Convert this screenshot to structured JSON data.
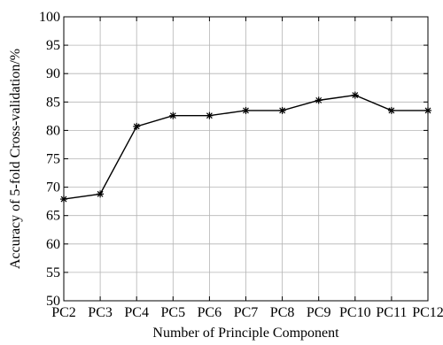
{
  "chart_data": {
    "type": "line",
    "title": "",
    "xlabel": "Number of Principle Component",
    "ylabel": "Accuracy of 5-fold Cross-validation/%",
    "categories": [
      "PC2",
      "PC3",
      "PC4",
      "PC5",
      "PC6",
      "PC7",
      "PC8",
      "PC9",
      "PC10",
      "PC11",
      "PC12"
    ],
    "series": [
      {
        "values": [
          67.9,
          68.8,
          80.7,
          82.6,
          82.6,
          83.5,
          83.5,
          85.3,
          86.2,
          83.5,
          83.5
        ]
      }
    ],
    "ylim": [
      50,
      100
    ],
    "yticks": [
      50,
      55,
      60,
      65,
      70,
      75,
      80,
      85,
      90,
      95,
      100
    ],
    "grid": true,
    "legend": "none",
    "marker": "asterisk",
    "line_color": "#000000"
  }
}
